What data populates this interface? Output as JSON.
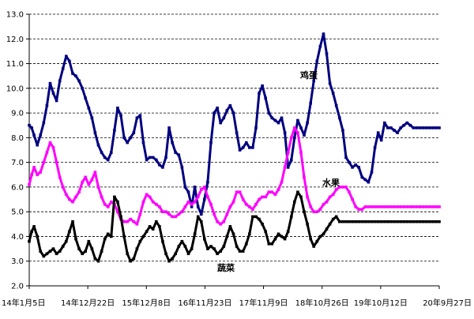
{
  "chart_data": {
    "type": "line",
    "grid": true,
    "ylim": [
      2.0,
      13.0
    ],
    "yticks": [
      "2.0",
      "3.0",
      "4.0",
      "5.0",
      "6.0",
      "7.0",
      "8.0",
      "9.0",
      "10.0",
      "11.0",
      "12.0",
      "13.0"
    ],
    "xticks": [
      "14年1月5日",
      "14年12月22日",
      "15年12月8日",
      "16年11月23日",
      "17年11月9日",
      "18年10月26日",
      "19年10月12日",
      "20年9月27日"
    ],
    "series": [
      {
        "name": "鸡蛋",
        "color": "#000080",
        "x": [
          0,
          3,
          6,
          10,
          14,
          18,
          22,
          26,
          30,
          34,
          38,
          42,
          46,
          50,
          54,
          58,
          62,
          66,
          70,
          74,
          78,
          82,
          86,
          90,
          94,
          98,
          102,
          106,
          110,
          114,
          118,
          122,
          126,
          130,
          134,
          138,
          142,
          146,
          150,
          154,
          158,
          162,
          166,
          170,
          174,
          178,
          182,
          186,
          190,
          194,
          198,
          202,
          206,
          210,
          214,
          218,
          222,
          226,
          230,
          234,
          238,
          242,
          246,
          250,
          254,
          258,
          262,
          266,
          270,
          274,
          278,
          282,
          286,
          290,
          294,
          298,
          302,
          306,
          310,
          314,
          318,
          322,
          326,
          330,
          334,
          338,
          342,
          346,
          350,
          354,
          358,
          362,
          366,
          370,
          374,
          378,
          382,
          386,
          390,
          394,
          398,
          402,
          406,
          410,
          414,
          418,
          422,
          426,
          430,
          434,
          438,
          442,
          446,
          450,
          454,
          458,
          462,
          466,
          470,
          474,
          478,
          482,
          486,
          490,
          494,
          498,
          502,
          506,
          510
        ],
        "values": [
          8.5,
          8.4,
          8.1,
          7.7,
          8.1,
          8.6,
          9.3,
          10.2,
          9.8,
          9.5,
          10.3,
          10.8,
          11.3,
          11.1,
          10.6,
          10.5,
          10.3,
          10.0,
          9.6,
          9.2,
          8.8,
          8.2,
          7.7,
          7.4,
          7.2,
          7.1,
          7.4,
          8.3,
          9.2,
          8.9,
          8.0,
          7.8,
          8.0,
          8.2,
          8.8,
          8.9,
          7.8,
          7.1,
          7.2,
          7.2,
          7.1,
          6.9,
          6.8,
          7.2,
          8.4,
          7.8,
          7.4,
          7.3,
          6.8,
          6.0,
          5.8,
          5.2,
          6.0,
          5.2,
          4.9,
          5.5,
          6.2,
          7.8,
          9.0,
          9.2,
          8.6,
          8.8,
          9.1,
          9.3,
          9.0,
          8.2,
          7.5,
          7.6,
          7.8,
          7.6,
          7.6,
          8.4,
          9.8,
          10.1,
          9.6,
          9.0,
          8.8,
          8.7,
          8.6,
          8.8,
          8.2,
          6.8,
          7.1,
          8.0,
          8.7,
          8.4,
          8.1,
          8.6,
          9.4,
          10.3,
          11.1,
          11.7,
          12.2,
          11.4,
          10.2,
          9.8,
          9.3,
          8.8,
          8.3,
          7.2,
          7.0,
          6.8,
          6.9,
          6.8,
          6.4,
          6.3,
          6.2,
          6.6,
          7.6,
          8.2,
          7.9,
          8.6,
          8.4,
          8.4,
          8.3,
          8.2,
          8.4,
          8.5,
          8.6,
          8.5,
          8.4,
          8.4,
          8.4,
          8.4,
          8.4,
          8.4,
          8.4,
          8.4,
          8.4
        ]
      },
      {
        "name": "水果",
        "color": "#FF00FF",
        "x": [
          0,
          3,
          6,
          10,
          14,
          18,
          22,
          26,
          30,
          34,
          38,
          42,
          46,
          50,
          54,
          58,
          62,
          66,
          70,
          74,
          78,
          82,
          86,
          90,
          94,
          98,
          102,
          106,
          110,
          114,
          118,
          122,
          126,
          130,
          134,
          138,
          142,
          146,
          150,
          154,
          158,
          162,
          166,
          170,
          174,
          178,
          182,
          186,
          190,
          194,
          198,
          202,
          206,
          210,
          214,
          218,
          222,
          226,
          230,
          234,
          238,
          242,
          246,
          250,
          254,
          258,
          262,
          266,
          270,
          274,
          278,
          282,
          286,
          290,
          294,
          298,
          302,
          306,
          310,
          314,
          318,
          322,
          326,
          330,
          334,
          338,
          342,
          346,
          350,
          354,
          358,
          362,
          366,
          370,
          374,
          378,
          382,
          386,
          390,
          394,
          398,
          402,
          406,
          410,
          414,
          418,
          422,
          426,
          430,
          434,
          438,
          442,
          446,
          450,
          454,
          458,
          462,
          466,
          470,
          474,
          478,
          482,
          486,
          490,
          494,
          498,
          502,
          506,
          510
        ],
        "values": [
          6.1,
          6.5,
          6.8,
          6.5,
          6.6,
          7.0,
          7.4,
          7.8,
          7.6,
          7.0,
          6.4,
          6.0,
          5.7,
          5.5,
          5.4,
          5.6,
          5.8,
          6.2,
          6.4,
          6.1,
          6.3,
          6.6,
          6.0,
          5.6,
          5.3,
          5.2,
          5.4,
          5.3,
          5.0,
          4.7,
          4.6,
          4.6,
          4.7,
          4.6,
          4.5,
          4.9,
          5.4,
          5.7,
          5.6,
          5.4,
          5.3,
          5.2,
          5.0,
          5.0,
          4.9,
          4.8,
          4.8,
          4.9,
          5.0,
          5.2,
          5.4,
          5.3,
          5.4,
          5.6,
          5.9,
          6.0,
          5.6,
          5.3,
          4.9,
          4.6,
          4.5,
          4.6,
          4.9,
          5.2,
          5.4,
          5.8,
          5.8,
          5.5,
          5.3,
          5.2,
          5.1,
          5.3,
          5.5,
          5.6,
          5.6,
          5.8,
          5.8,
          5.7,
          5.9,
          6.2,
          6.8,
          7.4,
          8.0,
          8.4,
          8.2,
          7.4,
          6.4,
          5.6,
          5.2,
          5.0,
          5.0,
          5.1,
          5.3,
          5.4,
          5.6,
          5.7,
          5.9,
          6.0,
          6.0,
          6.0,
          5.8,
          5.5,
          5.2,
          5.1,
          5.1,
          5.2,
          5.2,
          5.2,
          5.2,
          5.2,
          5.2,
          5.2,
          5.2,
          5.2,
          5.2,
          5.2,
          5.2,
          5.2,
          5.2,
          5.2,
          5.2,
          5.2,
          5.2,
          5.2,
          5.2,
          5.2,
          5.2,
          5.2,
          5.2
        ]
      },
      {
        "name": "蔬菜",
        "color": "#000000",
        "x": [
          0,
          3,
          6,
          10,
          14,
          18,
          22,
          26,
          30,
          34,
          38,
          42,
          46,
          50,
          54,
          58,
          62,
          66,
          70,
          74,
          78,
          82,
          86,
          90,
          94,
          98,
          102,
          106,
          110,
          114,
          118,
          122,
          126,
          130,
          134,
          138,
          142,
          146,
          150,
          154,
          158,
          162,
          166,
          170,
          174,
          178,
          182,
          186,
          190,
          194,
          198,
          202,
          206,
          210,
          214,
          218,
          222,
          226,
          230,
          234,
          238,
          242,
          246,
          250,
          254,
          258,
          262,
          266,
          270,
          274,
          278,
          282,
          286,
          290,
          294,
          298,
          302,
          306,
          310,
          314,
          318,
          322,
          326,
          330,
          334,
          338,
          342,
          346,
          350,
          354,
          358,
          362,
          366,
          370,
          374,
          378,
          382,
          386,
          390,
          394,
          398,
          402,
          406,
          410,
          414,
          418,
          422,
          426,
          430,
          434,
          438,
          442,
          446,
          450,
          454,
          458,
          462,
          466,
          470,
          474,
          478,
          482,
          486,
          490,
          494,
          498,
          502,
          506,
          510
        ],
        "values": [
          3.8,
          4.2,
          4.4,
          4.0,
          3.4,
          3.2,
          3.3,
          3.4,
          3.5,
          3.3,
          3.4,
          3.6,
          3.8,
          4.2,
          4.6,
          3.9,
          3.5,
          3.3,
          3.4,
          3.8,
          3.5,
          3.1,
          3.0,
          3.4,
          3.9,
          4.1,
          4.0,
          5.6,
          5.4,
          4.8,
          4.0,
          3.3,
          3.0,
          3.1,
          3.5,
          3.8,
          4.0,
          4.2,
          4.4,
          4.3,
          4.6,
          4.4,
          3.8,
          3.3,
          3.0,
          3.1,
          3.3,
          3.6,
          3.8,
          3.6,
          3.3,
          3.5,
          4.1,
          4.8,
          4.6,
          3.9,
          3.5,
          3.6,
          3.5,
          3.3,
          3.4,
          3.6,
          4.0,
          4.4,
          4.1,
          3.6,
          3.4,
          3.4,
          3.7,
          4.1,
          4.8,
          4.8,
          4.7,
          4.5,
          4.2,
          3.7,
          3.7,
          3.9,
          4.1,
          4.0,
          3.9,
          4.2,
          4.8,
          5.4,
          5.8,
          5.6,
          5.0,
          4.5,
          3.9,
          3.6,
          3.8,
          4.0,
          4.1,
          4.3,
          4.5,
          4.7,
          4.8,
          4.6,
          4.6,
          4.6,
          4.6,
          4.6,
          4.6,
          4.6,
          4.6,
          4.6,
          4.6,
          4.6,
          4.6,
          4.6,
          4.6,
          4.6,
          4.6,
          4.6,
          4.6,
          4.6,
          4.6,
          4.6,
          4.6,
          4.6,
          4.6,
          4.6,
          4.6,
          4.6,
          4.6,
          4.6,
          4.6,
          4.6,
          4.6
        ]
      }
    ],
    "annotations": [
      "鸡蛋",
      "水果",
      "蔬菜"
    ]
  }
}
